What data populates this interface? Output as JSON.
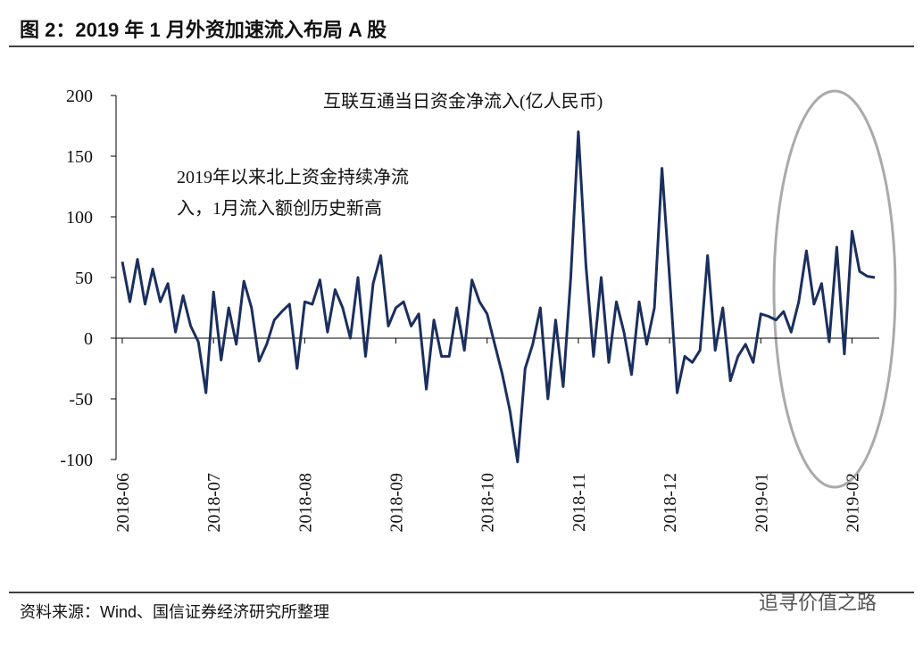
{
  "chart_data": {
    "type": "line",
    "title": "图 2：2019 年 1 月外资加速流入布局 A 股",
    "source": "资料来源：Wind、国信证券经济研究所整理",
    "watermark": "追寻价值之路",
    "annotations": [
      "2019年以来北上资金持续净流",
      "入，1月流入额创历史新高"
    ],
    "categories": [
      "2018-06",
      null,
      null,
      null,
      null,
      null,
      null,
      null,
      null,
      null,
      null,
      null,
      "2018-07",
      null,
      null,
      null,
      null,
      null,
      null,
      null,
      null,
      null,
      null,
      null,
      "2018-08",
      null,
      null,
      null,
      null,
      null,
      null,
      null,
      null,
      null,
      null,
      null,
      "2018-09",
      null,
      null,
      null,
      null,
      null,
      null,
      null,
      null,
      null,
      null,
      null,
      "2018-10",
      null,
      null,
      null,
      null,
      null,
      null,
      null,
      null,
      null,
      null,
      null,
      "2018-11",
      null,
      null,
      null,
      null,
      null,
      null,
      null,
      null,
      null,
      null,
      null,
      "2018-12",
      null,
      null,
      null,
      null,
      null,
      null,
      null,
      null,
      null,
      null,
      null,
      "2019-01",
      null,
      null,
      null,
      null,
      null,
      null,
      null,
      null,
      null,
      null,
      null,
      "2019-02",
      null,
      null,
      null
    ],
    "series": [
      {
        "name": "互联互通当日资金净流入(亿人民币)",
        "color": "#1b2f5e",
        "values": [
          63,
          30,
          65,
          28,
          57,
          30,
          45,
          5,
          35,
          10,
          -3,
          -45,
          38,
          -18,
          25,
          -5,
          47,
          25,
          -19,
          -5,
          15,
          22,
          28,
          -25,
          30,
          28,
          48,
          5,
          40,
          25,
          0,
          50,
          -15,
          45,
          68,
          10,
          25,
          30,
          10,
          20,
          -42,
          15,
          -15,
          -15,
          25,
          -10,
          48,
          30,
          20,
          -5,
          -30,
          -60,
          -102,
          -25,
          -5,
          25,
          -50,
          15,
          -40,
          50,
          170,
          60,
          -15,
          50,
          -20,
          30,
          5,
          -30,
          30,
          -5,
          25,
          140,
          50,
          -45,
          -15,
          -20,
          -10,
          68,
          -10,
          25,
          -35,
          -15,
          -5,
          -20,
          20,
          18,
          15,
          22,
          5,
          30,
          72,
          28,
          45,
          -3,
          75,
          -13,
          88,
          55,
          51,
          50
        ]
      }
    ],
    "ylim": [
      -100,
      200
    ],
    "yticks": [
      -100,
      -50,
      0,
      50,
      100,
      150,
      200
    ]
  }
}
